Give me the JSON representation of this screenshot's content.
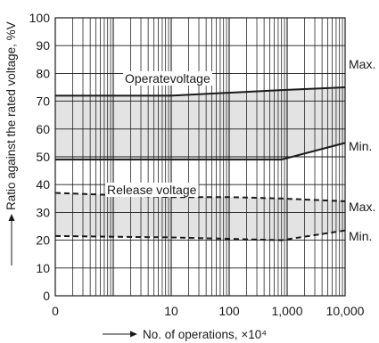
{
  "chart_data": {
    "type": "line",
    "xlabel": "No. of operations, ×10⁴",
    "ylabel": "Ratio against the rated voltage, %V",
    "x_scale": "log",
    "x_ticks": [
      {
        "value": 0.1,
        "label": "0"
      },
      {
        "value": 10,
        "label": "10"
      },
      {
        "value": 100,
        "label": "100"
      },
      {
        "value": 1000,
        "label": "1,000"
      },
      {
        "value": 10000,
        "label": "10,000"
      }
    ],
    "xlim": [
      0.1,
      10000
    ],
    "ylim": [
      0,
      100
    ],
    "y_ticks": [
      0,
      10,
      20,
      30,
      40,
      50,
      60,
      70,
      80,
      90,
      100
    ],
    "grid": true,
    "bands": [
      {
        "label": "Operatevoltage",
        "fill": "#e3e3e3",
        "line_color": "#1a1a1a",
        "dashed": false,
        "max_label": "Max.",
        "min_label": "Min.",
        "max": {
          "x": [
            0.1,
            10,
            800,
            10000
          ],
          "y": [
            72,
            72,
            74,
            75
          ]
        },
        "min": {
          "x": [
            0.1,
            10,
            800,
            10000
          ],
          "y": [
            49,
            49,
            49,
            55
          ]
        }
      },
      {
        "label": "Release voltage",
        "fill": "#e3e3e3",
        "line_color": "#1a1a1a",
        "dashed": true,
        "max_label": "Max.",
        "min_label": "Min.",
        "max": {
          "x": [
            0.1,
            10,
            100,
            800,
            10000
          ],
          "y": [
            37,
            35.5,
            35.5,
            35,
            34
          ]
        },
        "min": {
          "x": [
            0.1,
            10,
            100,
            800,
            10000
          ],
          "y": [
            21.5,
            21,
            20.5,
            20,
            23.5
          ]
        }
      }
    ]
  }
}
